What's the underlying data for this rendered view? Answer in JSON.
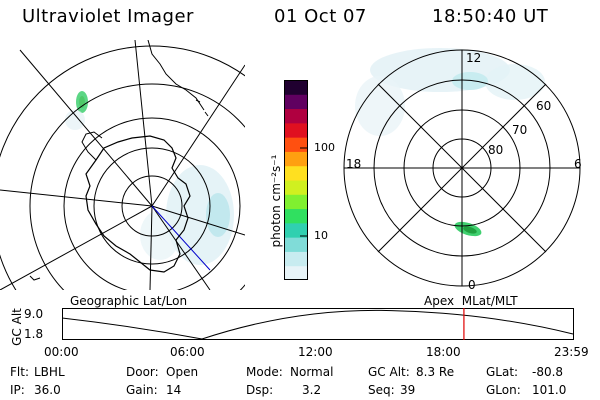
{
  "header": {
    "instrument": "Ultraviolet Imager",
    "date": "01 Oct 07",
    "time": "18:50:40 UT"
  },
  "left_panel": {
    "caption": "Geographic Lat/Lon"
  },
  "right_panel": {
    "caption": "Apex  MLat/MLT",
    "mlt_labels": [
      "12",
      "18",
      "6",
      "0"
    ],
    "mlat_labels": [
      "60",
      "70",
      "80"
    ]
  },
  "colorbar": {
    "unit_label": "photon cm⁻²s⁻¹",
    "tick_labels": [
      "100",
      "10"
    ],
    "colors": [
      "#e8f4f8",
      "#c8ecf0",
      "#80dcd8",
      "#30d0b0",
      "#30e060",
      "#80f030",
      "#d0f020",
      "#ffe020",
      "#ffa010",
      "#ff5010",
      "#e01020",
      "#b00040",
      "#600060",
      "#200030"
    ]
  },
  "altitude_plot": {
    "ylabel": "GC Alt",
    "y_ticks": [
      "9.0",
      "1.8"
    ],
    "x_ticks": [
      "00:00",
      "06:00",
      "12:00",
      "18:00",
      "23:59"
    ],
    "current_time_fraction": 0.785,
    "marker_color": "#e00000"
  },
  "status": {
    "filter_label": "Flt:",
    "filter_value": "LBHL",
    "ip_label": "IP:",
    "ip_value": "36.0",
    "door_label": "Door:",
    "door_value": "Open",
    "gain_label": "Gain:",
    "gain_value": "14",
    "mode_label": "Mode:",
    "mode_value": "Normal",
    "dsp_label": "Dsp:",
    "dsp_value": "3.2",
    "alt_label": "GC Alt:",
    "alt_value": "8.3 Re",
    "seq_label": "Seq:",
    "seq_value": "39",
    "glat_label": "GLat:",
    "glat_value": "-80.8",
    "glon_label": "GLon:",
    "glon_value": "101.0"
  }
}
